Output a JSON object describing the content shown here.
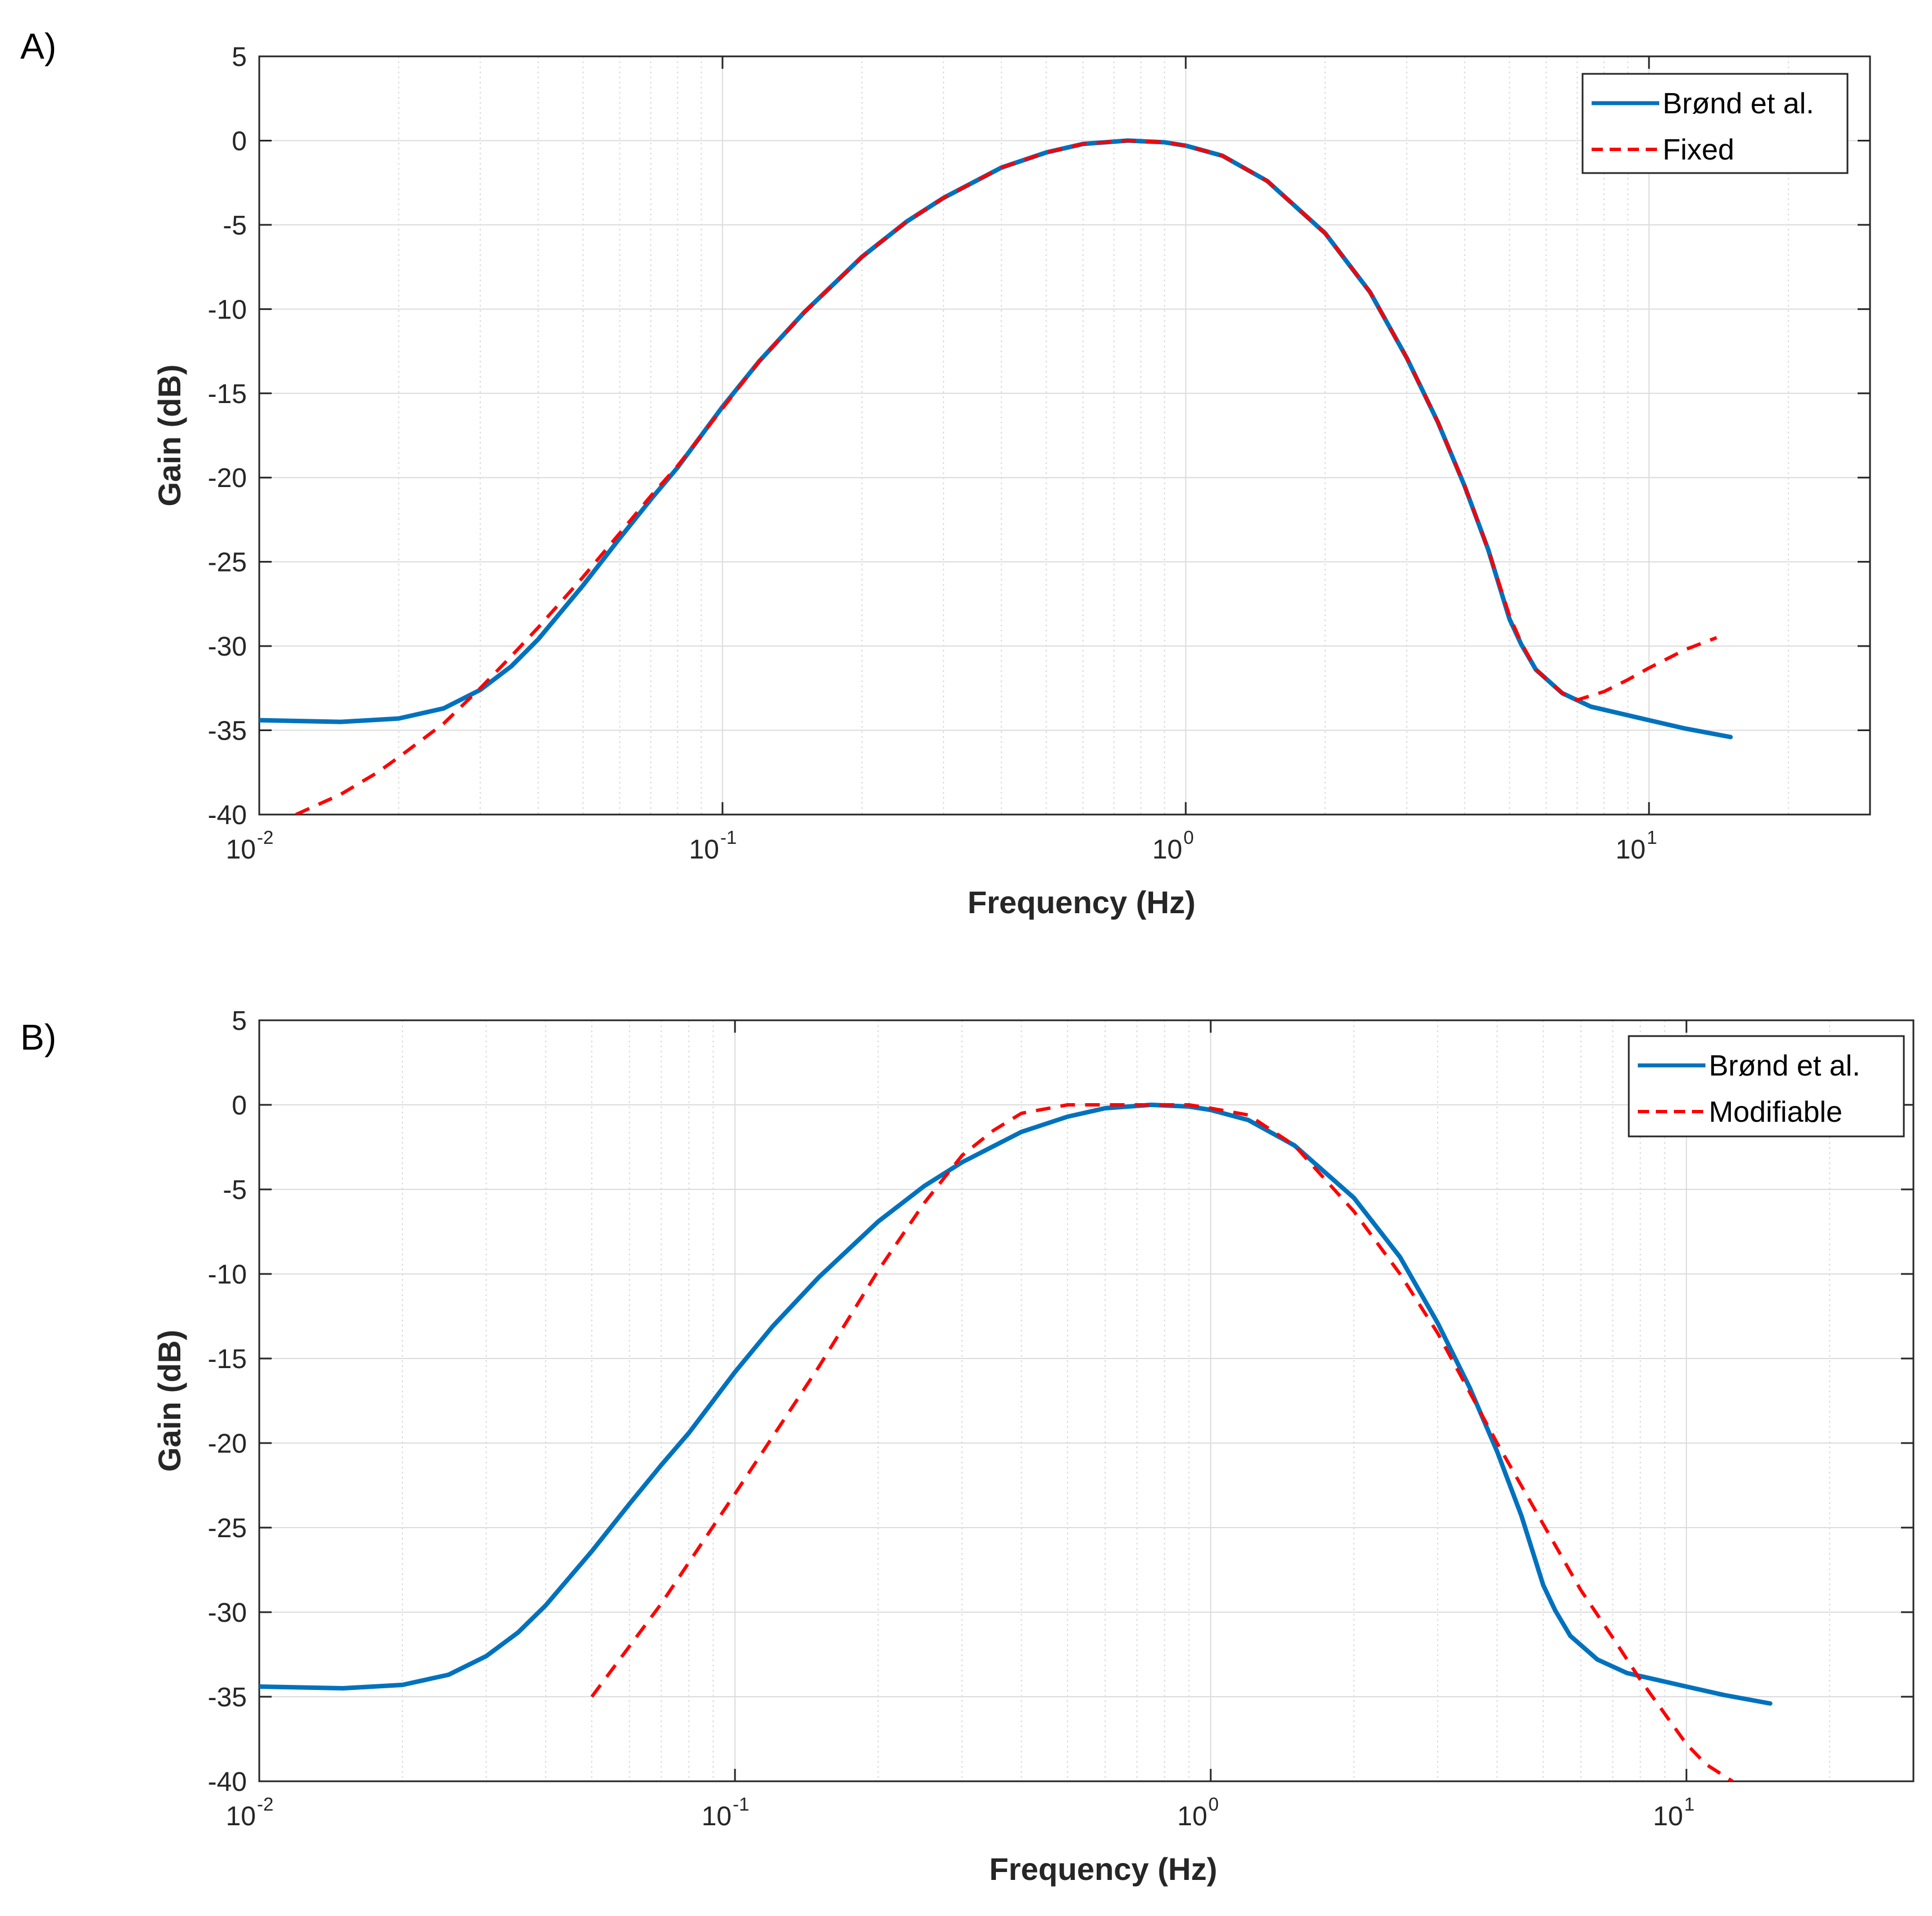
{
  "chart_data": [
    {
      "panel": "A)",
      "type": "line",
      "title": "",
      "xlabel": "Frequency (Hz)",
      "ylabel": "Gain (dB)",
      "xscale": "log",
      "xlim": [
        0.01,
        30
      ],
      "ylim": [
        -40,
        5
      ],
      "grid": true,
      "legend_position": "top-right",
      "xticks": [
        {
          "base": "10",
          "exp": "-2",
          "value": 0.01
        },
        {
          "base": "10",
          "exp": "-1",
          "value": 0.1
        },
        {
          "base": "10",
          "exp": "0",
          "value": 1
        },
        {
          "base": "10",
          "exp": "1",
          "value": 10
        }
      ],
      "yticks": [
        "5",
        "0",
        "-5",
        "-10",
        "-15",
        "-20",
        "-25",
        "-30",
        "-35",
        "-40"
      ],
      "series": [
        {
          "name": "Brønd et al.",
          "color": "#0072BD",
          "style": "solid",
          "x": [
            0.01,
            0.015,
            0.02,
            0.025,
            0.03,
            0.035,
            0.04,
            0.05,
            0.06,
            0.07,
            0.08,
            0.1,
            0.12,
            0.15,
            0.2,
            0.25,
            0.3,
            0.4,
            0.5,
            0.6,
            0.75,
            0.9,
            1.0,
            1.2,
            1.5,
            2.0,
            2.5,
            3.0,
            3.5,
            4.0,
            4.5,
            5.0,
            5.3,
            5.7,
            6.5,
            7.5,
            10,
            12,
            15
          ],
          "y": [
            -34.4,
            -34.5,
            -34.3,
            -33.7,
            -32.6,
            -31.2,
            -29.6,
            -26.4,
            -23.6,
            -21.3,
            -19.4,
            -15.8,
            -13.1,
            -10.2,
            -6.9,
            -4.8,
            -3.4,
            -1.6,
            -0.7,
            -0.2,
            0.0,
            -0.1,
            -0.3,
            -0.9,
            -2.4,
            -5.5,
            -9.0,
            -12.9,
            -16.7,
            -20.5,
            -24.3,
            -28.4,
            -29.9,
            -31.4,
            -32.8,
            -33.6,
            -34.4,
            -34.9,
            -35.4
          ]
        },
        {
          "name": "Fixed",
          "color": "#FF0000",
          "style": "dashed",
          "x": [
            0.012,
            0.015,
            0.018,
            0.02,
            0.025,
            0.03,
            0.035,
            0.04,
            0.05,
            0.06,
            0.07,
            0.08,
            0.1,
            0.12,
            0.15,
            0.2,
            0.25,
            0.3,
            0.4,
            0.5,
            0.6,
            0.75,
            0.9,
            1.0,
            1.2,
            1.5,
            2.0,
            2.5,
            3.0,
            3.5,
            4.0,
            4.5,
            5.0,
            5.3,
            5.7,
            6.5,
            7.0,
            8.0,
            9.0,
            10,
            12,
            14
          ],
          "y": [
            -40.0,
            -38.8,
            -37.5,
            -36.6,
            -34.6,
            -32.5,
            -30.6,
            -28.9,
            -25.9,
            -23.3,
            -21.1,
            -19.3,
            -15.9,
            -13.1,
            -10.2,
            -6.9,
            -4.8,
            -3.4,
            -1.6,
            -0.7,
            -0.2,
            0.0,
            -0.1,
            -0.3,
            -0.9,
            -2.4,
            -5.5,
            -9.0,
            -12.9,
            -16.7,
            -20.5,
            -24.3,
            -28.2,
            -29.8,
            -31.4,
            -32.8,
            -33.2,
            -32.7,
            -32.0,
            -31.3,
            -30.2,
            -29.5
          ]
        }
      ]
    },
    {
      "panel": "B)",
      "type": "line",
      "title": "",
      "xlabel": "Frequency (Hz)",
      "ylabel": "Gain (dB)",
      "xscale": "log",
      "xlim": [
        0.01,
        30
      ],
      "ylim": [
        -40,
        5
      ],
      "grid": true,
      "legend_position": "top-right",
      "xticks": [
        {
          "base": "10",
          "exp": "-2",
          "value": 0.01
        },
        {
          "base": "10",
          "exp": "-1",
          "value": 0.1
        },
        {
          "base": "10",
          "exp": "0",
          "value": 1
        },
        {
          "base": "10",
          "exp": "1",
          "value": 10
        }
      ],
      "yticks": [
        "5",
        "0",
        "-5",
        "-10",
        "-15",
        "-20",
        "-25",
        "-30",
        "-35",
        "-40"
      ],
      "series": [
        {
          "name": "Brønd et al.",
          "color": "#0072BD",
          "style": "solid",
          "x": [
            0.01,
            0.015,
            0.02,
            0.025,
            0.03,
            0.035,
            0.04,
            0.05,
            0.06,
            0.07,
            0.08,
            0.1,
            0.12,
            0.15,
            0.2,
            0.25,
            0.3,
            0.4,
            0.5,
            0.6,
            0.75,
            0.9,
            1.0,
            1.2,
            1.5,
            2.0,
            2.5,
            3.0,
            3.5,
            4.0,
            4.5,
            5.0,
            5.3,
            5.7,
            6.5,
            7.5,
            10,
            12,
            15
          ],
          "y": [
            -34.4,
            -34.5,
            -34.3,
            -33.7,
            -32.6,
            -31.2,
            -29.6,
            -26.4,
            -23.6,
            -21.3,
            -19.4,
            -15.8,
            -13.1,
            -10.2,
            -6.9,
            -4.8,
            -3.4,
            -1.6,
            -0.7,
            -0.2,
            0.0,
            -0.1,
            -0.3,
            -0.9,
            -2.4,
            -5.5,
            -9.0,
            -12.9,
            -16.7,
            -20.5,
            -24.3,
            -28.4,
            -29.9,
            -31.4,
            -32.8,
            -33.6,
            -34.4,
            -34.9,
            -35.4
          ]
        },
        {
          "name": "Modifiable",
          "color": "#FF0000",
          "style": "dashed",
          "x": [
            0.05,
            0.07,
            0.1,
            0.15,
            0.2,
            0.25,
            0.3,
            0.35,
            0.4,
            0.5,
            0.6,
            0.75,
            0.9,
            1.0,
            1.2,
            1.5,
            2.0,
            2.5,
            3.0,
            4.0,
            5.0,
            6.0,
            7.0,
            8.0,
            9.0,
            10,
            11,
            12.5
          ],
          "y": [
            -35.0,
            -29.5,
            -23.0,
            -15.5,
            -9.8,
            -5.8,
            -3.0,
            -1.5,
            -0.5,
            0.0,
            0.0,
            0.0,
            0.0,
            -0.2,
            -0.6,
            -2.4,
            -6.3,
            -10.0,
            -13.5,
            -20.0,
            -24.8,
            -28.7,
            -31.5,
            -34.0,
            -36.0,
            -37.8,
            -39.0,
            -40.0
          ]
        }
      ]
    }
  ]
}
